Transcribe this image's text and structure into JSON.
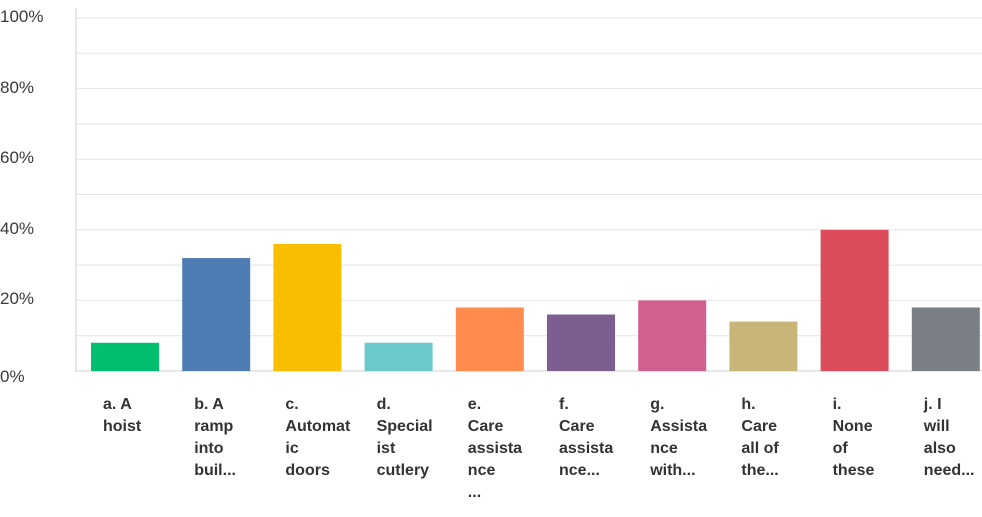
{
  "chart_data": {
    "type": "bar",
    "title": "",
    "xlabel": "",
    "ylabel": "",
    "ylim": [
      0,
      100
    ],
    "y_ticks": [
      "0%",
      "20%",
      "40%",
      "60%",
      "80%",
      "100%"
    ],
    "grid": true,
    "categories": [
      [
        "a. A",
        "hoist"
      ],
      [
        "b. A",
        "ramp",
        "into",
        "buil..."
      ],
      [
        "c.",
        "Automat",
        "ic",
        "doors"
      ],
      [
        "d.",
        "Special",
        "ist",
        "cutlery"
      ],
      [
        "e.",
        "Care",
        "assista",
        "nce",
        "..."
      ],
      [
        "f.",
        "Care",
        "assista",
        "nce..."
      ],
      [
        "g.",
        "Assista",
        "nce",
        "with..."
      ],
      [
        "h.",
        "Care",
        "all of",
        "the..."
      ],
      [
        "i.",
        "None",
        "of",
        "these"
      ],
      [
        "j. I",
        "will",
        "also",
        "need..."
      ]
    ],
    "values": [
      8,
      32,
      36,
      8,
      18,
      16,
      20,
      14,
      40,
      18
    ],
    "colors": [
      "#00bf6f",
      "#507cb6",
      "#f9be00",
      "#6bc8cd",
      "#ff8b4f",
      "#7d5e90",
      "#d25f90",
      "#c8b57a",
      "#dc4c5a",
      "#7a8085"
    ]
  }
}
